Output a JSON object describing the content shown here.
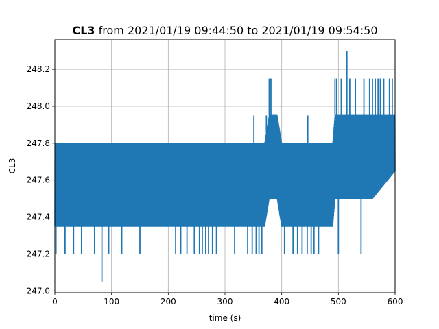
{
  "chart_data": {
    "type": "line",
    "title_bold": "CL3",
    "title_rest": " from 2021/01/19 09:44:50 to 2021/01/19 09:54:50",
    "xlabel": "time (s)",
    "ylabel": "CL3",
    "xlim": [
      0,
      600
    ],
    "ylim": [
      246.99,
      248.36
    ],
    "xticks": [
      0,
      100,
      200,
      300,
      400,
      500,
      600
    ],
    "xtick_labels": [
      "0",
      "100",
      "200",
      "300",
      "400",
      "500",
      "600"
    ],
    "yticks": [
      247.0,
      247.2,
      247.4,
      247.6,
      247.8,
      248.0,
      248.2
    ],
    "ytick_labels": [
      "247.0",
      "247.2",
      "247.4",
      "247.6",
      "247.8",
      "248.0",
      "248.2"
    ],
    "grid": true,
    "color": "#1f77b4",
    "series": [
      {
        "x": [
          0,
          40,
          80,
          120,
          165,
          200,
          240,
          280,
          320,
          370,
          378,
          392,
          400,
          440,
          490,
          494,
          520,
          560,
          600
        ],
        "y_low": [
          247.35,
          247.35,
          247.35,
          247.35,
          247.35,
          247.35,
          247.35,
          247.35,
          247.35,
          247.35,
          247.5,
          247.5,
          247.35,
          247.35,
          247.35,
          247.5,
          247.5,
          247.5,
          247.65
        ],
        "y_high": [
          247.8,
          247.8,
          247.8,
          247.8,
          247.8,
          247.8,
          247.8,
          247.8,
          247.8,
          247.8,
          247.95,
          247.95,
          247.8,
          247.8,
          247.8,
          247.95,
          247.95,
          247.95,
          247.95
        ]
      }
    ],
    "spikes": [
      {
        "x": 2,
        "y": 247.2
      },
      {
        "x": 18,
        "y": 247.2
      },
      {
        "x": 33,
        "y": 247.2
      },
      {
        "x": 47,
        "y": 247.2
      },
      {
        "x": 70,
        "y": 247.2
      },
      {
        "x": 83,
        "y": 247.05
      },
      {
        "x": 95,
        "y": 247.2
      },
      {
        "x": 118,
        "y": 247.2
      },
      {
        "x": 150,
        "y": 247.2
      },
      {
        "x": 213,
        "y": 247.2
      },
      {
        "x": 222,
        "y": 247.2
      },
      {
        "x": 233,
        "y": 247.2
      },
      {
        "x": 246,
        "y": 247.2
      },
      {
        "x": 255,
        "y": 247.2
      },
      {
        "x": 260,
        "y": 247.2
      },
      {
        "x": 266,
        "y": 247.2
      },
      {
        "x": 271,
        "y": 247.2
      },
      {
        "x": 278,
        "y": 247.2
      },
      {
        "x": 285,
        "y": 247.2
      },
      {
        "x": 317,
        "y": 247.2
      },
      {
        "x": 340,
        "y": 247.2
      },
      {
        "x": 348,
        "y": 247.2
      },
      {
        "x": 355,
        "y": 247.2
      },
      {
        "x": 360,
        "y": 247.2
      },
      {
        "x": 365,
        "y": 247.2
      },
      {
        "x": 405,
        "y": 247.2
      },
      {
        "x": 420,
        "y": 247.2
      },
      {
        "x": 428,
        "y": 247.2
      },
      {
        "x": 436,
        "y": 247.2
      },
      {
        "x": 445,
        "y": 247.2
      },
      {
        "x": 452,
        "y": 247.2
      },
      {
        "x": 457,
        "y": 247.2
      },
      {
        "x": 465,
        "y": 247.2
      },
      {
        "x": 500,
        "y": 247.2
      },
      {
        "x": 540,
        "y": 247.2
      },
      {
        "x": 351,
        "y": 247.95
      },
      {
        "x": 373,
        "y": 247.95
      },
      {
        "x": 378,
        "y": 248.15
      },
      {
        "x": 381,
        "y": 248.15
      },
      {
        "x": 446,
        "y": 247.95
      },
      {
        "x": 494,
        "y": 248.15
      },
      {
        "x": 497,
        "y": 248.15
      },
      {
        "x": 505,
        "y": 248.15
      },
      {
        "x": 515,
        "y": 248.3
      },
      {
        "x": 520,
        "y": 248.15
      },
      {
        "x": 530,
        "y": 248.15
      },
      {
        "x": 545,
        "y": 248.15
      },
      {
        "x": 555,
        "y": 248.15
      },
      {
        "x": 560,
        "y": 248.15
      },
      {
        "x": 565,
        "y": 248.15
      },
      {
        "x": 570,
        "y": 248.15
      },
      {
        "x": 574,
        "y": 248.15
      },
      {
        "x": 580,
        "y": 248.15
      },
      {
        "x": 590,
        "y": 248.15
      },
      {
        "x": 595,
        "y": 248.15
      }
    ]
  }
}
